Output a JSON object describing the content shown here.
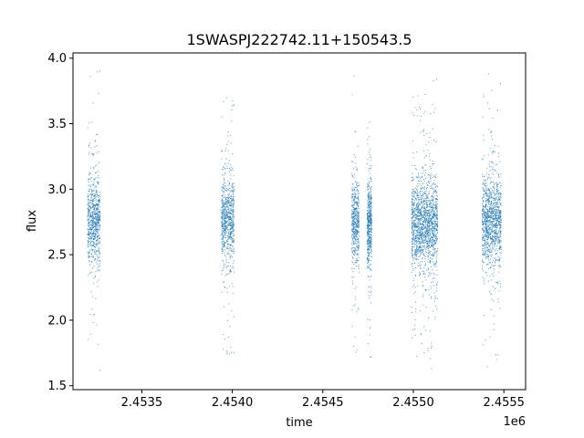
{
  "chart_data": {
    "type": "scatter",
    "title": "1SWASPJ222742.11+150543.5",
    "xlabel": "time",
    "ylabel": "flux",
    "x_offset_label": "1e6",
    "xlim": [
      2453120,
      2455620
    ],
    "ylim": [
      1.47,
      4.04
    ],
    "x_ticks": [
      2453500,
      2454000,
      2454500,
      2455000,
      2455500
    ],
    "x_tick_labels": [
      "2.4535",
      "2.4540",
      "2.4545",
      "2.4550",
      "2.4555"
    ],
    "y_ticks": [
      1.5,
      2.0,
      2.5,
      3.0,
      3.5,
      4.0
    ],
    "y_tick_labels": [
      "1.5",
      "2.0",
      "2.5",
      "3.0",
      "3.5",
      "4.0"
    ],
    "grid": false,
    "marker_color": "#1f77b4",
    "observing_seasons": [
      {
        "x_start": 2453200,
        "x_end": 2453270,
        "median_flux": 2.75,
        "min_flux": 1.6,
        "max_flux": 3.92
      },
      {
        "x_start": 2453940,
        "x_end": 2454010,
        "median_flux": 2.76,
        "min_flux": 1.64,
        "max_flux": 3.81
      },
      {
        "x_start": 2454660,
        "x_end": 2454700,
        "median_flux": 2.76,
        "min_flux": 1.75,
        "max_flux": 3.9
      },
      {
        "x_start": 2454745,
        "x_end": 2454770,
        "median_flux": 2.73,
        "min_flux": 1.59,
        "max_flux": 3.66
      },
      {
        "x_start": 2454990,
        "x_end": 2455135,
        "median_flux": 2.73,
        "min_flux": 1.61,
        "max_flux": 3.85
      },
      {
        "x_start": 2455380,
        "x_end": 2455485,
        "median_flux": 2.76,
        "min_flux": 1.59,
        "max_flux": 3.92
      }
    ]
  }
}
